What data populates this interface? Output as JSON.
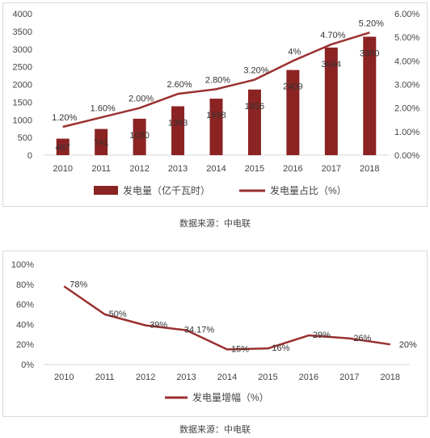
{
  "colors": {
    "bar": "#8b2323",
    "line": "#9b3030",
    "axis": "#d9d9d9",
    "text": "#444444"
  },
  "chart_data": [
    {
      "type": "bar+line",
      "categories": [
        "2010",
        "2011",
        "2012",
        "2013",
        "2014",
        "2015",
        "2016",
        "2017",
        "2018"
      ],
      "series": [
        {
          "name": "发电量（亿千瓦时）",
          "type": "bar",
          "axis": "left",
          "values": [
            467,
            741,
            1030,
            1383,
            1598,
            1856,
            2409,
            3044,
            3350
          ],
          "labels": [
            "467",
            "741",
            "1030",
            "1383",
            "1598",
            "1856",
            "2409",
            "3044",
            "3350"
          ]
        },
        {
          "name": "发电量占比（%）",
          "type": "line",
          "axis": "right",
          "values": [
            1.2,
            1.6,
            2.0,
            2.6,
            2.8,
            3.2,
            4.0,
            4.7,
            5.2
          ],
          "labels": [
            "1.20%",
            "1.60%",
            "2.00%",
            "2.60%",
            "2.80%",
            "3.20%",
            "4%",
            "4.70%",
            "5.20%"
          ]
        }
      ],
      "y_left": {
        "min": 0,
        "max": 4000,
        "ticks": [
          "0",
          "500",
          "1000",
          "1500",
          "2000",
          "2500",
          "3000",
          "3500",
          "4000"
        ]
      },
      "y_right": {
        "min": 0,
        "max": 6,
        "ticks": [
          "0.00%",
          "1.00%",
          "2.00%",
          "3.00%",
          "4.00%",
          "5.00%",
          "6.00%"
        ]
      },
      "legend_position": "bottom",
      "grid": false
    },
    {
      "type": "line",
      "categories": [
        "2010",
        "2011",
        "2012",
        "2013",
        "2014",
        "2015",
        "2016",
        "2017",
        "2018"
      ],
      "series": [
        {
          "name": "发电量增幅（%）",
          "values": [
            78,
            50,
            39,
            34.17,
            15,
            16,
            29,
            26,
            20
          ],
          "labels": [
            "78%",
            "50%",
            "39%",
            "34.17%",
            "15%",
            "16%",
            "29%",
            "26%",
            "20%"
          ]
        }
      ],
      "y": {
        "min": 0,
        "max": 100,
        "ticks": [
          "0%",
          "20%",
          "40%",
          "60%",
          "80%",
          "100%"
        ]
      },
      "legend_position": "bottom",
      "grid": false
    }
  ],
  "captions": {
    "source1": "数据来源：中电联",
    "source2": "数据来源：中电联"
  }
}
